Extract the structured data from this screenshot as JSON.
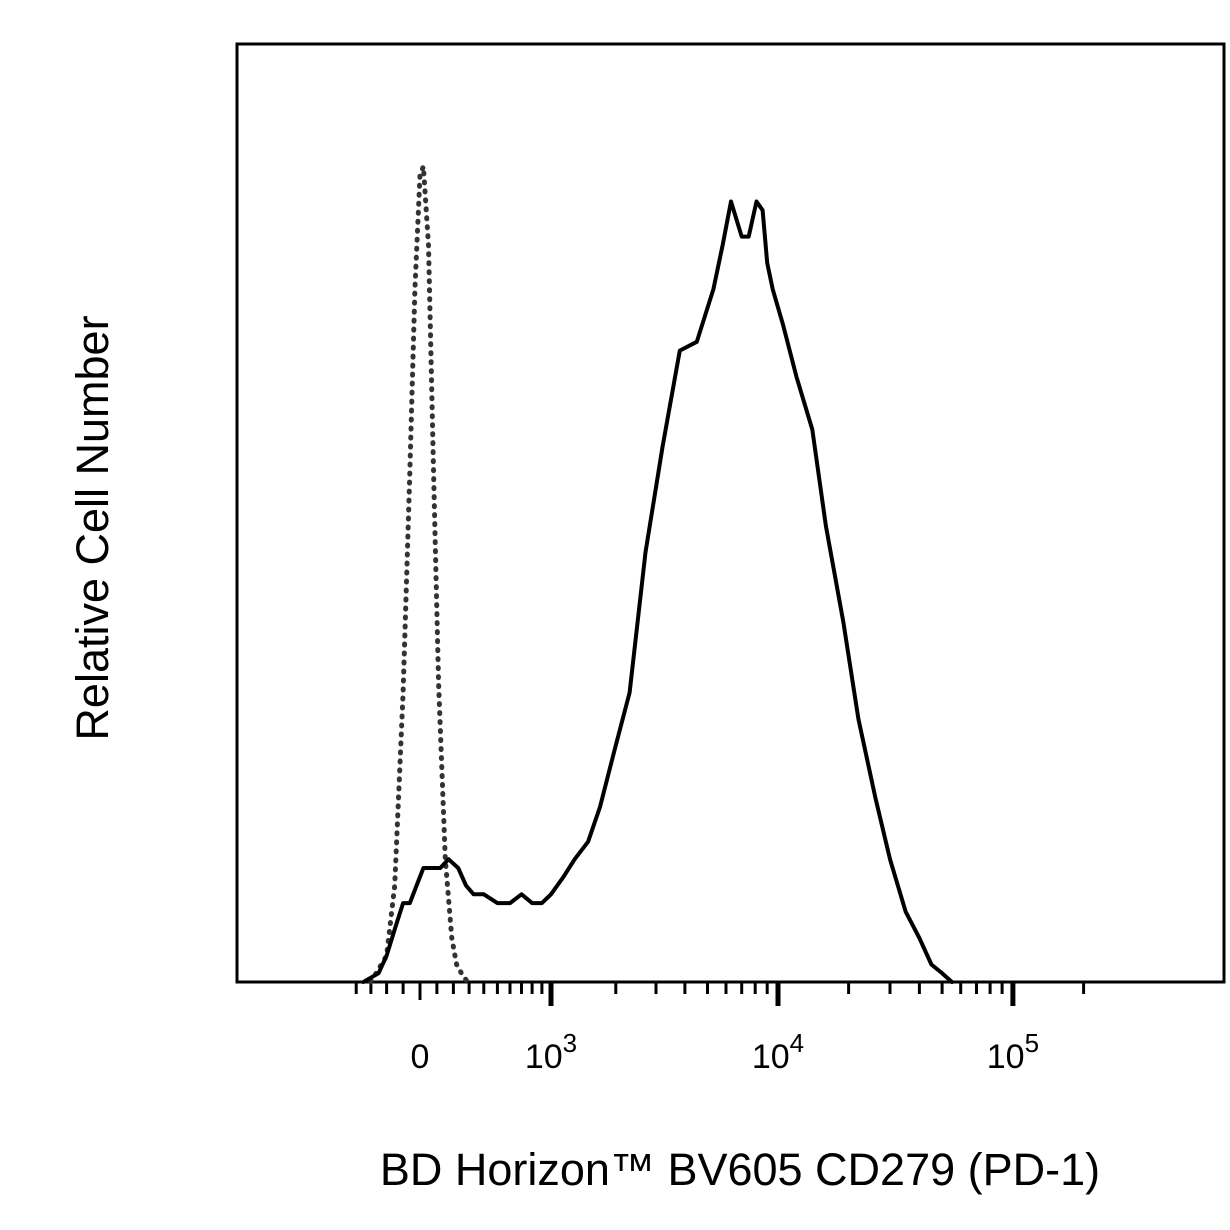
{
  "chart_data": {
    "type": "line",
    "title": "",
    "xlabel": "BD Horizon™ BV605 CD279 (PD-1)",
    "ylabel": "Relative Cell Number",
    "x_scale": "biexponential",
    "xlim": [
      -400,
      200000
    ],
    "ylim": [
      0,
      1.0
    ],
    "x_tick_labels": [
      {
        "value": 0,
        "base": "0",
        "exp": ""
      },
      {
        "value": 1000,
        "base": "10",
        "exp": "3"
      },
      {
        "value": 10000,
        "base": "10",
        "exp": "4"
      },
      {
        "value": 100000,
        "base": "10",
        "exp": "5"
      }
    ],
    "grid": false,
    "legend": "none",
    "series": [
      {
        "style": "dotted",
        "color": "#333333",
        "x": [
          -300,
          -200,
          -150,
          -100,
          -60,
          -30,
          0,
          20,
          50,
          80,
          110,
          150,
          190,
          220,
          250,
          290
        ],
        "y": [
          0.0,
          0.03,
          0.11,
          0.33,
          0.58,
          0.79,
          0.92,
          0.93,
          0.84,
          0.58,
          0.34,
          0.14,
          0.05,
          0.02,
          0.01,
          0.0
        ]
      },
      {
        "style": "solid",
        "color": "#000000",
        "x": [
          -350,
          -250,
          -200,
          -150,
          -100,
          -60,
          -20,
          20,
          70,
          120,
          170,
          230,
          280,
          330,
          400,
          500,
          600,
          700,
          800,
          900,
          1000,
          1150,
          1300,
          1500,
          1700,
          2000,
          2300,
          2700,
          3200,
          3800,
          4500,
          5300,
          5800,
          6300,
          7000,
          7500,
          8100,
          8600,
          9000,
          9500,
          10500,
          12000,
          14000,
          16000,
          19000,
          22000,
          26000,
          30000,
          35000,
          40000,
          45000,
          50000,
          55000
        ],
        "y": [
          0.0,
          0.01,
          0.03,
          0.06,
          0.09,
          0.09,
          0.11,
          0.13,
          0.13,
          0.13,
          0.14,
          0.13,
          0.11,
          0.1,
          0.1,
          0.09,
          0.09,
          0.1,
          0.09,
          0.09,
          0.1,
          0.12,
          0.14,
          0.16,
          0.2,
          0.27,
          0.33,
          0.49,
          0.61,
          0.72,
          0.73,
          0.79,
          0.84,
          0.89,
          0.85,
          0.85,
          0.89,
          0.88,
          0.82,
          0.79,
          0.75,
          0.69,
          0.63,
          0.52,
          0.41,
          0.3,
          0.21,
          0.14,
          0.08,
          0.05,
          0.02,
          0.01,
          0.0
        ]
      }
    ]
  }
}
